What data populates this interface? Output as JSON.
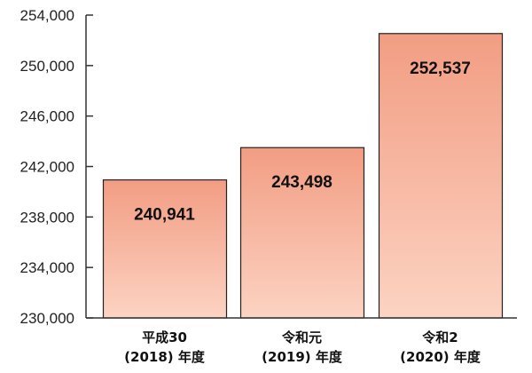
{
  "chart_data": {
    "type": "bar",
    "categories": [
      [
        "平成30",
        "(2018) 年度"
      ],
      [
        "令和元",
        "(2019) 年度"
      ],
      [
        "令和2",
        "(2020) 年度"
      ]
    ],
    "values": [
      240941,
      243498,
      252537
    ],
    "data_labels": [
      "240,941",
      "243,498",
      "252,537"
    ],
    "ylim": [
      230000,
      254000
    ],
    "yticks": [
      230000,
      234000,
      238000,
      242000,
      246000,
      250000,
      254000
    ],
    "ytick_labels": [
      "230,000",
      "234,000",
      "238,000",
      "242,000",
      "246,000",
      "250,000",
      "254,000"
    ],
    "title": "",
    "xlabel": "",
    "ylabel": "",
    "grid": false,
    "legend": "none",
    "colors": {
      "bar_top": "#f29d83",
      "bar_bottom": "#fcd3c2",
      "bar_stroke": "#222222",
      "axis": "#333333"
    }
  }
}
